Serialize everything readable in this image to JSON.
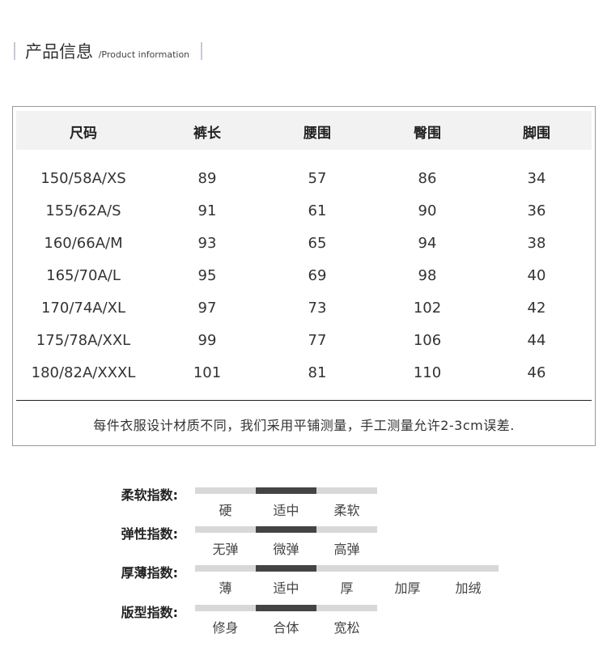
{
  "section": {
    "title": "产品信息",
    "sep": "/",
    "subtitle": "Product information"
  },
  "table": {
    "headers": [
      "尺码",
      "裤长",
      "腰围",
      "臀围",
      "脚围"
    ],
    "rows": [
      [
        "150/58A/XS",
        "89",
        "57",
        "86",
        "34"
      ],
      [
        "155/62A/S",
        "91",
        "61",
        "90",
        "36"
      ],
      [
        "160/66A/M",
        "93",
        "65",
        "94",
        "38"
      ],
      [
        "165/70A/L",
        "95",
        "69",
        "98",
        "40"
      ],
      [
        "170/74A/XL",
        "97",
        "73",
        "102",
        "42"
      ],
      [
        "175/78A/XXL",
        "99",
        "77",
        "106",
        "44"
      ],
      [
        "180/82A/XXXL",
        "101",
        "81",
        "110",
        "46"
      ]
    ],
    "note": "每件衣服设计材质不同，我们采用平铺测量，手工测量允许2-3cm误差."
  },
  "indices": [
    {
      "label": "柔软指数:",
      "options": [
        "硬",
        "适中",
        "柔软"
      ],
      "selected": 1
    },
    {
      "label": "弹性指数:",
      "options": [
        "无弹",
        "微弹",
        "高弹"
      ],
      "selected": 1
    },
    {
      "label": "厚薄指数:",
      "options": [
        "薄",
        "适中",
        "厚",
        "加厚",
        "加绒"
      ],
      "selected": 1
    },
    {
      "label": "版型指数:",
      "options": [
        "修身",
        "合体",
        "宽松"
      ],
      "selected": 1
    }
  ],
  "colors": {
    "selected": "#444444",
    "unselected": "#d8d8d8",
    "header_bg": "#f2f2f2"
  }
}
